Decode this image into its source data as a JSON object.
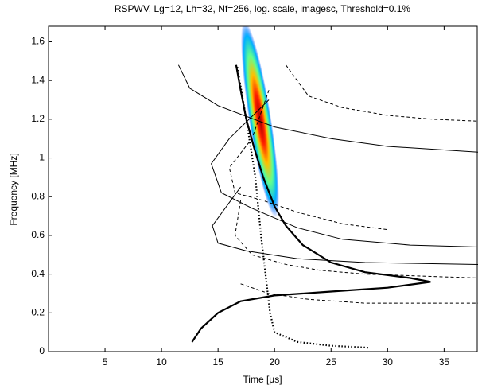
{
  "chart_data": {
    "type": "line",
    "title": "RSPWV, Lg=12, Lh=32, Nf=256, log. scale, imagesc, Threshold=0.1%",
    "x_label": "Time [μs]",
    "y_label": "Frequency [MHz]",
    "xlim": [
      0,
      38
    ],
    "ylim": [
      0,
      1.68
    ],
    "xticks": [
      5,
      10,
      15,
      20,
      25,
      30,
      35
    ],
    "yticks": [
      0,
      0.2,
      0.4,
      0.6,
      0.8,
      1,
      1.2,
      1.4,
      1.6
    ],
    "series": [
      {
        "color": "#000000",
        "style": "solid",
        "width": 2.2,
        "x": [
          12.7,
          13.5,
          15,
          17,
          20,
          25,
          30,
          33.8,
          32,
          28,
          25,
          22.5,
          21,
          20,
          19,
          18.2,
          17.5,
          17,
          16.6
        ],
        "values": [
          0.05,
          0.12,
          0.2,
          0.26,
          0.29,
          0.31,
          0.33,
          0.36,
          0.38,
          0.41,
          0.46,
          0.55,
          0.65,
          0.75,
          0.9,
          1.05,
          1.2,
          1.35,
          1.48
        ]
      },
      {
        "color": "#000000",
        "style": "dotted",
        "width": 2.2,
        "x": [
          16.7,
          17.5,
          18.3,
          18.8,
          19.2,
          19.6,
          20,
          22,
          25,
          28.3
        ],
        "values": [
          1.47,
          1.2,
          0.9,
          0.6,
          0.4,
          0.2,
          0.1,
          0.05,
          0.03,
          0.02
        ]
      },
      {
        "color": "#000000",
        "style": "solid",
        "width": 1,
        "x": [
          11.5,
          12.5,
          15,
          20,
          25,
          30,
          38
        ],
        "values": [
          1.48,
          1.36,
          1.27,
          1.16,
          1.1,
          1.06,
          1.03
        ]
      },
      {
        "color": "#000000",
        "style": "solid",
        "width": 1,
        "x": [
          19.5,
          16,
          14.4,
          15.3,
          18,
          22,
          26,
          32,
          38
        ],
        "values": [
          1.3,
          1.1,
          0.97,
          0.82,
          0.74,
          0.64,
          0.58,
          0.55,
          0.54
        ]
      },
      {
        "color": "#000000",
        "style": "solid",
        "width": 1,
        "x": [
          17,
          14.5,
          15,
          17.5,
          22,
          28,
          38
        ],
        "values": [
          0.85,
          0.65,
          0.56,
          0.52,
          0.48,
          0.46,
          0.45
        ]
      },
      {
        "color": "#000000",
        "style": "dashed",
        "width": 1,
        "x": [
          21,
          22,
          23,
          26,
          30,
          34,
          38
        ],
        "values": [
          1.48,
          1.4,
          1.32,
          1.26,
          1.22,
          1.2,
          1.19
        ]
      },
      {
        "color": "#000000",
        "style": "dashed",
        "width": 1,
        "x": [
          19.5,
          18,
          16,
          16.5,
          19,
          22,
          26,
          30
        ],
        "values": [
          1.35,
          1.1,
          0.95,
          0.82,
          0.78,
          0.72,
          0.66,
          0.63
        ]
      },
      {
        "color": "#000000",
        "style": "dashed",
        "width": 1,
        "x": [
          17,
          16.5,
          18,
          21,
          24,
          28,
          38
        ],
        "values": [
          0.78,
          0.6,
          0.5,
          0.45,
          0.42,
          0.4,
          0.38
        ]
      },
      {
        "color": "#000000",
        "style": "dashed",
        "width": 1,
        "x": [
          17,
          19.5,
          23,
          28,
          38
        ],
        "values": [
          0.35,
          0.3,
          0.27,
          0.25,
          0.25
        ]
      }
    ]
  }
}
